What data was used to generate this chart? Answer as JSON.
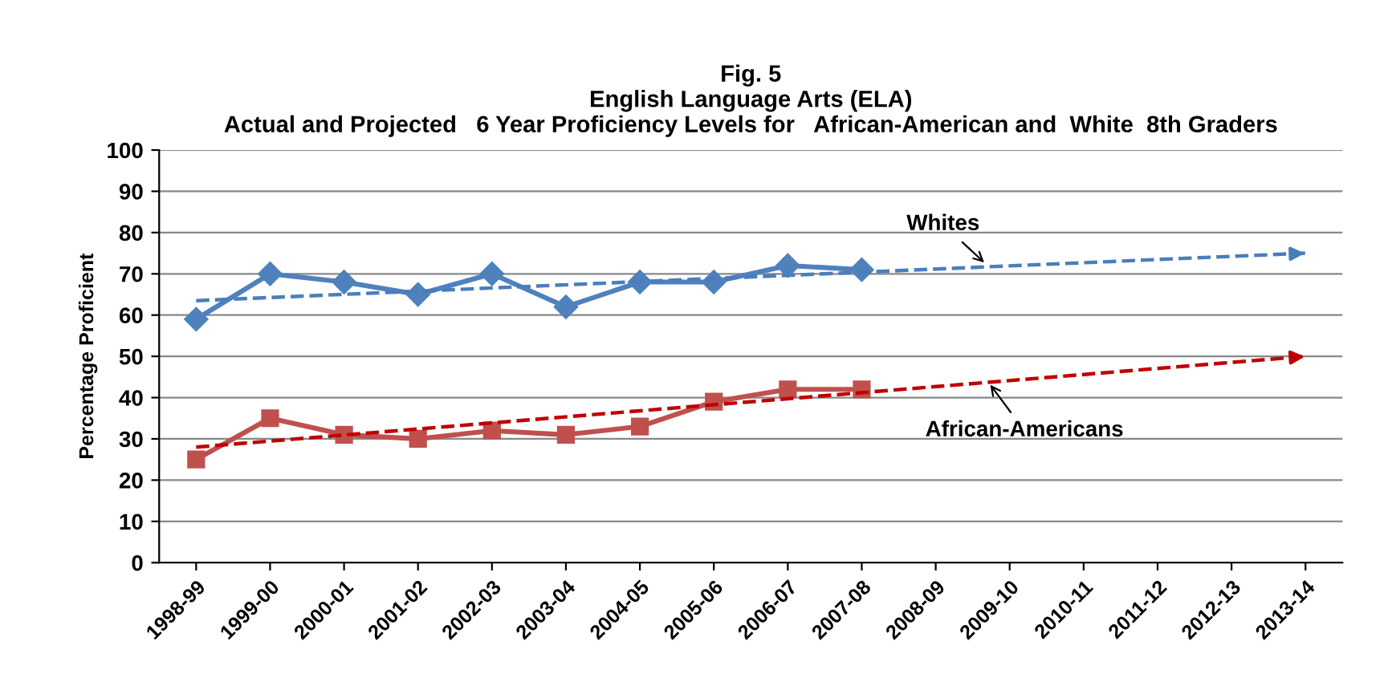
{
  "chart_data": {
    "type": "line",
    "title": "Fig. 5\nEnglish Language Arts (ELA)\nActual and Projected   6 Year Proficiency Levels for   African-American and  White  8th Graders",
    "ylabel": "Percentage Proficient",
    "categories": [
      "1998-99",
      "1999-00",
      "2000-01",
      "2001-02",
      "2002-03",
      "2003-04",
      "2004-05",
      "2005-06",
      "2006-07",
      "2007-08",
      "2008-09",
      "2009-10",
      "2010-11",
      "2011-12",
      "2012-13",
      "2013-14"
    ],
    "series": [
      {
        "color": "#4f81bd",
        "marker": "diamond",
        "line_style": "solid",
        "values": [
          59,
          70,
          68,
          65,
          70,
          62,
          68,
          68,
          72,
          71,
          null,
          null,
          null,
          null,
          null,
          null
        ]
      },
      {
        "color": "#c0504d",
        "marker": "square",
        "line_style": "solid",
        "values": [
          25,
          35,
          31,
          30,
          32,
          31,
          33,
          39,
          42,
          42,
          null,
          null,
          null,
          null,
          null,
          null
        ]
      },
      {
        "color": "#4a7ebb",
        "marker": "none",
        "line_style": "dashed",
        "x": [
          "1998-99",
          "2013-14"
        ],
        "values": [
          63.5,
          75
        ]
      },
      {
        "color": "#c00000",
        "marker": "none",
        "line_style": "dashed",
        "x": [
          "1998-99",
          "2013-14"
        ],
        "values": [
          28,
          50
        ]
      }
    ],
    "annotations": [
      {
        "text": "Whites",
        "x": "2009-10",
        "y": 72
      },
      {
        "text": "African-Americans",
        "x": "2009-10",
        "y": 44
      }
    ],
    "ylim": [
      0,
      100
    ],
    "yticks": [
      0,
      10,
      20,
      30,
      40,
      50,
      60,
      70,
      80,
      90,
      100
    ],
    "grid": "y",
    "legend": false
  }
}
